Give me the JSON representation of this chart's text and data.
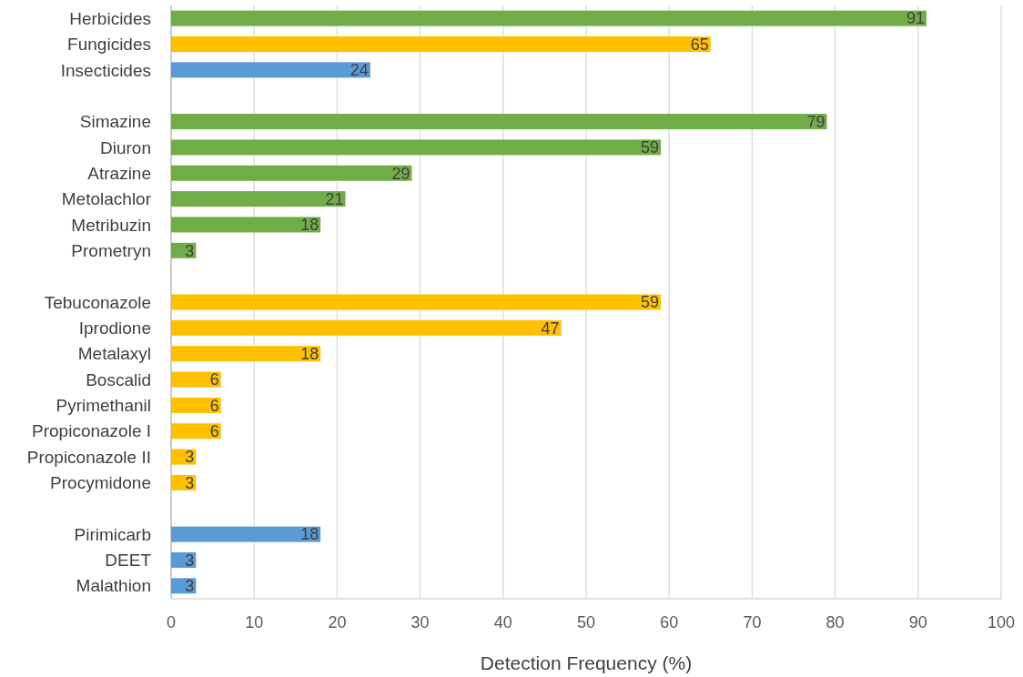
{
  "chart_data": {
    "type": "bar",
    "orientation": "horizontal",
    "xlabel": "Detection Frequency (%)",
    "categories": [
      "Herbicides",
      "Fungicides",
      "Insecticides",
      null,
      "Simazine",
      "Diuron",
      "Atrazine",
      "Metolachlor",
      "Metribuzin",
      "Prometryn",
      null,
      "Tebuconazole",
      "Iprodione",
      "Metalaxyl",
      "Boscalid",
      "Pyrimethanil",
      "Propiconazole I",
      "Propiconazole II",
      "Procymidone",
      null,
      "Pirimicarb",
      "DEET",
      "Malathion"
    ],
    "values": [
      91,
      65,
      24,
      null,
      79,
      59,
      29,
      21,
      18,
      3,
      null,
      59,
      47,
      18,
      6,
      6,
      6,
      3,
      3,
      null,
      18,
      3,
      3
    ],
    "colors": [
      "#70ad47",
      "#ffc000",
      "#5b9bd5",
      null,
      "#70ad47",
      "#70ad47",
      "#70ad47",
      "#70ad47",
      "#70ad47",
      "#70ad47",
      null,
      "#ffc000",
      "#ffc000",
      "#ffc000",
      "#ffc000",
      "#ffc000",
      "#ffc000",
      "#ffc000",
      "#ffc000",
      null,
      "#5b9bd5",
      "#5b9bd5",
      "#5b9bd5"
    ],
    "xlim": [
      0,
      100
    ],
    "xticks": [
      0,
      10,
      20,
      30,
      40,
      50,
      60,
      70,
      80,
      90,
      100
    ],
    "grid": "x",
    "data_labels": true
  }
}
